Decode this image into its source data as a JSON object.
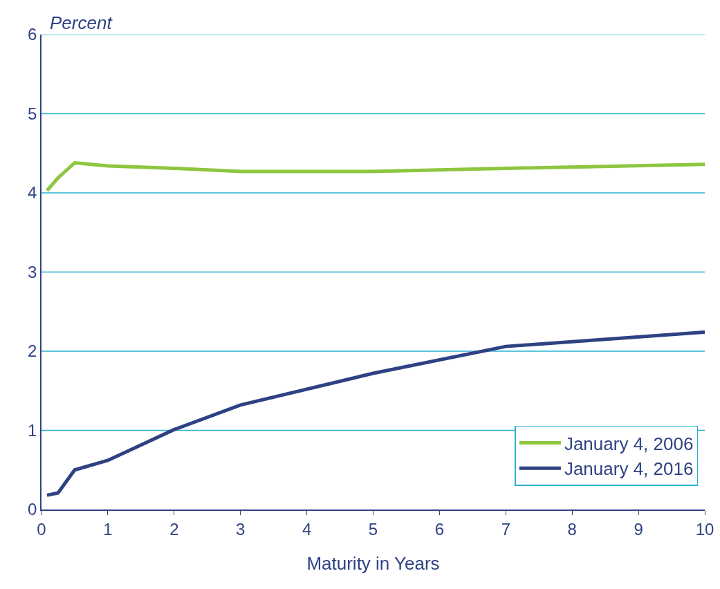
{
  "chart_data": {
    "type": "line",
    "xlabel": "Maturity in Years",
    "ylabel": "Percent",
    "x": [
      0.083,
      0.25,
      0.5,
      1,
      2,
      3,
      5,
      7,
      10
    ],
    "series": [
      {
        "name": "January 4, 2006",
        "color": "#8dc63f",
        "values": [
          4.03,
          4.19,
          4.38,
          4.34,
          4.31,
          4.27,
          4.27,
          4.31,
          4.36
        ]
      },
      {
        "name": "January 4, 2016",
        "color": "#2e4283",
        "values": [
          0.18,
          0.21,
          0.5,
          0.62,
          1.01,
          1.32,
          1.72,
          2.06,
          2.24
        ]
      }
    ],
    "xlim": [
      0,
      10
    ],
    "xticks": [
      0,
      1,
      2,
      3,
      4,
      5,
      6,
      7,
      8,
      9,
      10
    ],
    "ylim": [
      0,
      6
    ],
    "yticks": [
      0,
      1,
      2,
      3,
      4,
      5,
      6
    ],
    "grid": "y",
    "legend": "bottom right",
    "marker": "none",
    "line_style": "solid"
  }
}
